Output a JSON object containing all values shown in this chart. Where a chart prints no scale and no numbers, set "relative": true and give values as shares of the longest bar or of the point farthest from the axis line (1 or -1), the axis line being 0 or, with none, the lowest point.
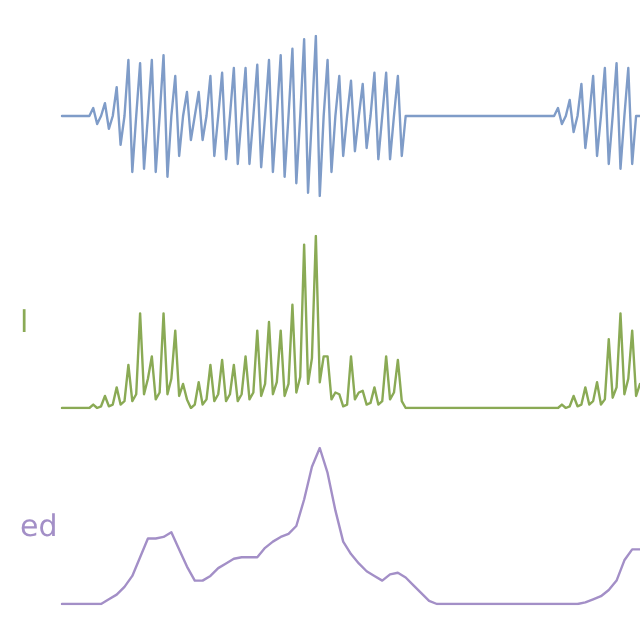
{
  "chart_data": [
    {
      "type": "line",
      "relative": true,
      "marker": "none",
      "line_style": "solid",
      "categories": [
        null,
        null,
        null,
        null,
        null,
        null,
        null,
        null,
        null,
        null,
        null,
        null,
        null,
        null,
        null,
        null,
        null,
        null,
        null,
        null,
        null,
        null,
        null,
        null,
        null,
        null,
        null,
        null,
        null,
        null,
        null,
        null,
        null,
        null,
        null,
        null,
        null,
        null,
        null,
        null,
        null,
        null,
        null,
        null,
        null,
        null,
        null,
        null,
        null,
        null,
        null,
        null,
        null,
        null,
        null,
        null,
        null,
        null,
        null,
        null,
        null,
        null,
        null,
        null,
        null,
        null,
        null,
        null,
        null,
        null,
        null,
        null,
        null,
        null,
        null,
        null,
        null,
        null,
        null,
        null,
        null,
        null,
        null,
        null,
        null,
        null,
        null,
        null,
        null,
        null,
        null,
        null,
        null,
        null,
        null,
        null,
        null,
        null,
        null,
        null,
        null,
        null,
        null,
        null,
        null,
        null,
        null,
        null,
        null,
        null,
        null,
        null,
        null,
        null,
        null,
        null,
        null,
        null,
        null,
        null,
        null,
        null,
        null,
        null,
        null,
        null,
        null,
        null,
        null,
        null,
        null,
        null,
        null,
        null,
        null,
        null,
        null,
        null,
        null,
        null,
        null,
        null,
        null,
        null,
        null,
        null,
        null,
        null,
        null
      ],
      "series": [
        {
          "color": "#7f9cc8",
          "values": [
            0.5,
            0.5,
            0.5,
            0.5,
            0.5,
            0.5,
            0.5,
            0.5,
            0.55,
            0.45,
            0.5,
            0.58,
            0.42,
            0.5,
            0.68,
            0.32,
            0.5,
            0.85,
            0.15,
            0.5,
            0.83,
            0.17,
            0.5,
            0.85,
            0.15,
            0.5,
            0.88,
            0.12,
            0.5,
            0.75,
            0.25,
            0.5,
            0.65,
            0.35,
            0.5,
            0.65,
            0.35,
            0.5,
            0.75,
            0.25,
            0.5,
            0.77,
            0.23,
            0.5,
            0.8,
            0.2,
            0.5,
            0.8,
            0.2,
            0.5,
            0.82,
            0.18,
            0.5,
            0.85,
            0.15,
            0.5,
            0.88,
            0.12,
            0.5,
            0.92,
            0.08,
            0.5,
            0.98,
            0.02,
            0.5,
            1,
            0,
            0.5,
            0.85,
            0.15,
            0.5,
            0.75,
            0.25,
            0.5,
            0.72,
            0.28,
            0.5,
            0.7,
            0.3,
            0.5,
            0.77,
            0.23,
            0.5,
            0.77,
            0.23,
            0.5,
            0.75,
            0.25,
            0.5,
            0.5,
            0.5,
            0.5,
            0.5,
            0.5,
            0.5,
            0.5,
            0.5,
            0.5,
            0.5,
            0.5,
            0.5,
            0.5,
            0.5,
            0.5,
            0.5,
            0.5,
            0.5,
            0.5,
            0.5,
            0.5,
            0.5,
            0.5,
            0.5,
            0.5,
            0.5,
            0.5,
            0.5,
            0.5,
            0.5,
            0.5,
            0.5,
            0.5,
            0.5,
            0.5,
            0.5,
            0.5,
            0.5,
            0.55,
            0.45,
            0.5,
            0.6,
            0.4,
            0.5,
            0.7,
            0.3,
            0.5,
            0.75,
            0.25,
            0.5,
            0.8,
            0.2,
            0.5,
            0.83,
            0.17,
            0.5,
            0.8,
            0.2,
            0.5,
            0.5
          ]
        }
      ]
    },
    {
      "type": "line",
      "relative": true,
      "marker": "none",
      "line_style": "solid",
      "categories": [
        null,
        null,
        null,
        null,
        null,
        null,
        null,
        null,
        null,
        null,
        null,
        null,
        null,
        null,
        null,
        null,
        null,
        null,
        null,
        null,
        null,
        null,
        null,
        null,
        null,
        null,
        null,
        null,
        null,
        null,
        null,
        null,
        null,
        null,
        null,
        null,
        null,
        null,
        null,
        null,
        null,
        null,
        null,
        null,
        null,
        null,
        null,
        null,
        null,
        null,
        null,
        null,
        null,
        null,
        null,
        null,
        null,
        null,
        null,
        null,
        null,
        null,
        null,
        null,
        null,
        null,
        null,
        null,
        null,
        null,
        null,
        null,
        null,
        null,
        null,
        null,
        null,
        null,
        null,
        null,
        null,
        null,
        null,
        null,
        null,
        null,
        null,
        null,
        null,
        null,
        null,
        null,
        null,
        null,
        null,
        null,
        null,
        null,
        null,
        null,
        null,
        null,
        null,
        null,
        null,
        null,
        null,
        null,
        null,
        null,
        null,
        null,
        null,
        null,
        null,
        null,
        null,
        null,
        null,
        null,
        null,
        null,
        null,
        null,
        null,
        null,
        null,
        null,
        null,
        null,
        null,
        null,
        null,
        null,
        null,
        null,
        null,
        null,
        null,
        null,
        null,
        null,
        null,
        null,
        null,
        null,
        null,
        null,
        null
      ],
      "series": [
        {
          "name": "l",
          "color": "#8aaa55",
          "values": [
            0,
            0,
            0,
            0,
            0,
            0,
            0,
            0,
            0.02,
            0,
            0.01,
            0.07,
            0.01,
            0.02,
            0.12,
            0.02,
            0.04,
            0.25,
            0.04,
            0.08,
            0.55,
            0.08,
            0.17,
            0.3,
            0.05,
            0.09,
            0.55,
            0.08,
            0.17,
            0.45,
            0.07,
            0.14,
            0.05,
            0,
            0.02,
            0.15,
            0.02,
            0.05,
            0.25,
            0.04,
            0.08,
            0.28,
            0.04,
            0.08,
            0.25,
            0.04,
            0.08,
            0.3,
            0.05,
            0.09,
            0.45,
            0.07,
            0.14,
            0.5,
            0.08,
            0.15,
            0.45,
            0.07,
            0.14,
            0.6,
            0.09,
            0.18,
            0.95,
            0.14,
            0.29,
            1,
            0.15,
            0.3,
            0.3,
            0.05,
            0.09,
            0.08,
            0.01,
            0.02,
            0.3,
            0.05,
            0.09,
            0.1,
            0.02,
            0.03,
            0.12,
            0.02,
            0.04,
            0.3,
            0.05,
            0.09,
            0.28,
            0.04,
            0,
            0,
            0,
            0,
            0,
            0,
            0,
            0,
            0,
            0,
            0,
            0,
            0,
            0,
            0,
            0,
            0,
            0,
            0,
            0,
            0,
            0,
            0,
            0,
            0,
            0,
            0,
            0,
            0,
            0,
            0,
            0,
            0,
            0,
            0,
            0,
            0,
            0,
            0,
            0,
            0.02,
            0,
            0.01,
            0.07,
            0.01,
            0.02,
            0.12,
            0.02,
            0.04,
            0.15,
            0.02,
            0.05,
            0.4,
            0.06,
            0.12,
            0.55,
            0.08,
            0.17,
            0.45,
            0.07,
            0.14
          ]
        }
      ]
    },
    {
      "type": "line",
      "relative": true,
      "marker": "none",
      "line_style": "solid",
      "categories": [
        null,
        null,
        null,
        null,
        null,
        null,
        null,
        null,
        null,
        null,
        null,
        null,
        null,
        null,
        null,
        null,
        null,
        null,
        null,
        null,
        null,
        null,
        null,
        null,
        null,
        null,
        null,
        null,
        null,
        null,
        null,
        null,
        null,
        null,
        null,
        null,
        null,
        null,
        null,
        null,
        null,
        null,
        null,
        null,
        null,
        null,
        null,
        null,
        null,
        null,
        null,
        null,
        null,
        null,
        null,
        null,
        null,
        null,
        null,
        null,
        null,
        null,
        null,
        null,
        null,
        null,
        null,
        null,
        null,
        null,
        null,
        null,
        null,
        null,
        null
      ],
      "series": [
        {
          "name": "ed",
          "color": "#a38fc7",
          "values": [
            0,
            0,
            0,
            0,
            0,
            0,
            0.03,
            0.06,
            0.11,
            0.18,
            0.3,
            0.42,
            0.42,
            0.43,
            0.46,
            0.35,
            0.24,
            0.15,
            0.15,
            0.18,
            0.23,
            0.26,
            0.29,
            0.3,
            0.3,
            0.3,
            0.36,
            0.4,
            0.43,
            0.45,
            0.5,
            0.67,
            0.88,
            1,
            0.84,
            0.6,
            0.4,
            0.32,
            0.26,
            0.21,
            0.18,
            0.15,
            0.19,
            0.2,
            0.17,
            0.12,
            0.07,
            0.02,
            0,
            0,
            0,
            0,
            0,
            0,
            0,
            0,
            0,
            0,
            0,
            0,
            0,
            0,
            0,
            0,
            0,
            0,
            0,
            0.01,
            0.03,
            0.05,
            0.09,
            0.15,
            0.28,
            0.35,
            0.35
          ]
        }
      ]
    }
  ]
}
